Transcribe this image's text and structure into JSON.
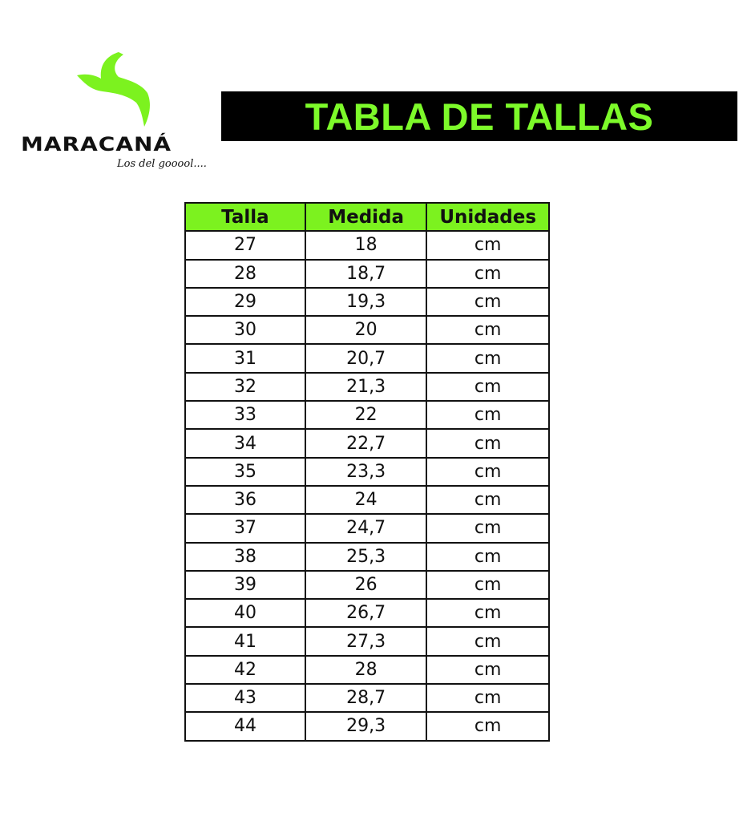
{
  "logo": {
    "brand": "MARACANÁ",
    "tagline": "Los del gooool....",
    "color": "#7cf21f"
  },
  "banner": {
    "title": "TABLA DE TALLAS",
    "text_color": "#7dfa2a",
    "background": "#000000"
  },
  "table": {
    "headers": [
      "Talla",
      "Medida",
      "Unidades"
    ],
    "header_color": "#7cf21f",
    "rows": [
      [
        "27",
        "18",
        "cm"
      ],
      [
        "28",
        "18,7",
        "cm"
      ],
      [
        "29",
        "19,3",
        "cm"
      ],
      [
        "30",
        "20",
        "cm"
      ],
      [
        "31",
        "20,7",
        "cm"
      ],
      [
        "32",
        "21,3",
        "cm"
      ],
      [
        "33",
        "22",
        "cm"
      ],
      [
        "34",
        "22,7",
        "cm"
      ],
      [
        "35",
        "23,3",
        "cm"
      ],
      [
        "36",
        "24",
        "cm"
      ],
      [
        "37",
        "24,7",
        "cm"
      ],
      [
        "38",
        "25,3",
        "cm"
      ],
      [
        "39",
        "26",
        "cm"
      ],
      [
        "40",
        "26,7",
        "cm"
      ],
      [
        "41",
        "27,3",
        "cm"
      ],
      [
        "42",
        "28",
        "cm"
      ],
      [
        "43",
        "28,7",
        "cm"
      ],
      [
        "44",
        "29,3",
        "cm"
      ]
    ]
  }
}
